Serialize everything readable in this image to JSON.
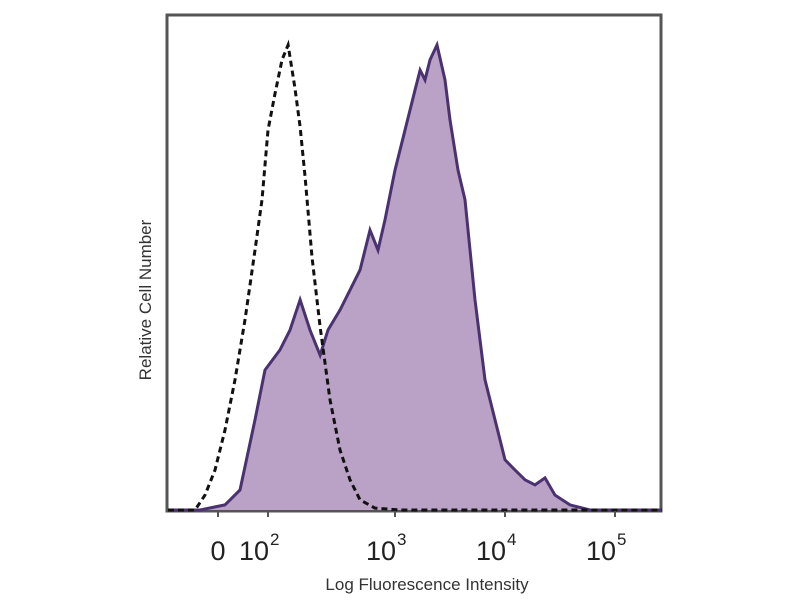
{
  "chart_data": {
    "type": "area",
    "title": "",
    "xlabel": "Log Fluorescence Intensity",
    "ylabel": "Relative Cell Number",
    "x_scale": "biexponential",
    "xlim": [
      -100,
      267000
    ],
    "ylim": [
      0,
      100
    ],
    "grid": false,
    "x_ticks": [
      {
        "value": 0,
        "base": "0",
        "exp": ""
      },
      {
        "value": 100,
        "base": "10",
        "exp": "2"
      },
      {
        "value": 1000,
        "base": "10",
        "exp": "3"
      },
      {
        "value": 10000,
        "base": "10",
        "exp": "4"
      },
      {
        "value": 100000,
        "base": "10",
        "exp": "5"
      }
    ],
    "series": [
      {
        "style": "filled",
        "fill": "#b9a2c6",
        "stroke": "#4a3270",
        "x": [
          -100,
          -36,
          14,
          44,
          74,
          94,
          124,
          149,
          179,
          214,
          257,
          297,
          369,
          442,
          530,
          636,
          735,
          834,
          1000,
          1233,
          1520,
          1690,
          1875,
          2080,
          2410,
          2850,
          3160,
          3740,
          4330,
          5340,
          6580,
          8110,
          10000,
          12330,
          15200,
          18750,
          23100,
          28500,
          39000,
          59300,
          267000
        ],
        "y": [
          0,
          0,
          1.1,
          4.3,
          19.4,
          30.1,
          34.4,
          38.7,
          45.2,
          38.7,
          33.3,
          38.7,
          43.0,
          47.3,
          51.6,
          60.2,
          55.9,
          62.4,
          73.1,
          81.7,
          90.3,
          94.6,
          92.5,
          96.8,
          100,
          92.5,
          83.9,
          73.1,
          66.7,
          45.2,
          28.0,
          19.4,
          10.8,
          8.6,
          6.5,
          5.4,
          6.9,
          3.2,
          1.1,
          0,
          0
        ]
      },
      {
        "style": "dashed",
        "stroke": "#111111",
        "x": [
          -100,
          -46,
          -26,
          -6,
          14,
          34,
          54,
          74,
          88,
          100,
          113,
          129,
          144,
          163,
          179,
          196,
          222,
          257,
          308,
          369,
          442,
          530,
          696,
          1110,
          267000
        ],
        "y": [
          0,
          0,
          3.2,
          8.6,
          17.2,
          28.0,
          40.9,
          55.9,
          66.7,
          81.7,
          89.2,
          96.8,
          100,
          90.8,
          82.4,
          71.6,
          54.4,
          39.4,
          23.7,
          12.9,
          6.5,
          2.2,
          0.4,
          0,
          0
        ]
      }
    ]
  }
}
